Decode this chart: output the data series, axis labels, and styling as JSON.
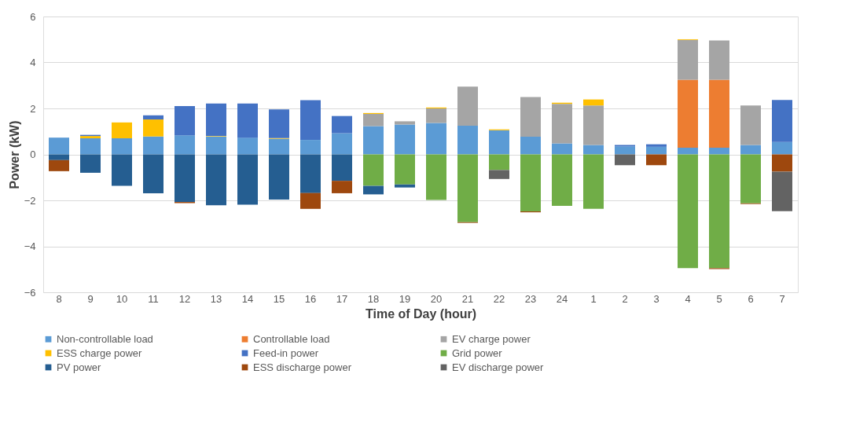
{
  "chart_data": {
    "type": "bar",
    "stacked": true,
    "xlabel": "Time of Day (hour)",
    "ylabel": "Power (kW)",
    "categories": [
      "8",
      "9",
      "10",
      "11",
      "12",
      "13",
      "14",
      "15",
      "16",
      "17",
      "18",
      "19",
      "20",
      "21",
      "22",
      "23",
      "24",
      "1",
      "2",
      "3",
      "4",
      "5",
      "6",
      "7"
    ],
    "ylim": [
      -6,
      6
    ],
    "yticks": [
      -6,
      -4,
      -2,
      0,
      2,
      4,
      6
    ],
    "grid": "y",
    "legend": "bottom",
    "series": [
      {
        "name": "Non-controllable load",
        "color": "#5b9bd5",
        "values": [
          0.73,
          0.7,
          0.7,
          0.78,
          0.83,
          0.78,
          0.73,
          0.68,
          0.63,
          0.92,
          1.23,
          1.3,
          1.37,
          1.25,
          1.05,
          0.77,
          0.48,
          0.41,
          0.35,
          0.33,
          0.29,
          0.29,
          0.41,
          0.54
        ]
      },
      {
        "name": "Controllable load",
        "color": "#ed7d31",
        "values": [
          null,
          null,
          null,
          null,
          null,
          null,
          null,
          null,
          null,
          null,
          null,
          null,
          null,
          null,
          null,
          null,
          null,
          null,
          null,
          null,
          2.96,
          2.96,
          null,
          null
        ]
      },
      {
        "name": "EV charge power",
        "color": "#a5a5a5",
        "values": [
          null,
          null,
          null,
          null,
          null,
          null,
          null,
          null,
          null,
          null,
          0.53,
          0.14,
          0.63,
          1.7,
          null,
          1.73,
          1.72,
          1.72,
          null,
          null,
          1.73,
          1.71,
          1.72,
          null
        ]
      },
      {
        "name": "ESS charge power",
        "color": "#ffc000",
        "values": [
          null,
          0.1,
          0.69,
          0.74,
          null,
          0.02,
          null,
          0.03,
          null,
          null,
          0.04,
          null,
          0.04,
          null,
          0.04,
          null,
          0.05,
          0.26,
          null,
          null,
          0.03,
          null,
          null,
          null
        ]
      },
      {
        "name": "Feed-in power",
        "color": "#4472c4",
        "values": [
          null,
          0.05,
          null,
          0.18,
          1.27,
          1.41,
          1.48,
          1.25,
          1.73,
          0.75,
          null,
          null,
          null,
          null,
          null,
          null,
          null,
          null,
          0.06,
          0.11,
          null,
          null,
          null,
          1.83
        ]
      },
      {
        "name": "Grid power",
        "color": "#70ad47",
        "values": [
          null,
          null,
          null,
          null,
          null,
          null,
          null,
          null,
          null,
          null,
          -1.37,
          -1.31,
          -1.98,
          -2.95,
          -0.68,
          -2.48,
          -2.24,
          -2.37,
          null,
          null,
          -4.95,
          -4.95,
          -2.13,
          null
        ]
      },
      {
        "name": "PV power",
        "color": "#255e91",
        "values": [
          -0.25,
          -0.8,
          -1.37,
          -1.69,
          -2.07,
          -2.21,
          -2.19,
          -1.97,
          -1.68,
          -1.15,
          -0.37,
          -0.13,
          null,
          null,
          null,
          null,
          null,
          null,
          null,
          null,
          null,
          null,
          null,
          null
        ]
      },
      {
        "name": "ESS discharge power",
        "color": "#9e480e",
        "values": [
          -0.48,
          null,
          null,
          null,
          -0.05,
          null,
          null,
          null,
          -0.69,
          -0.54,
          null,
          null,
          null,
          -0.03,
          null,
          -0.04,
          null,
          null,
          null,
          -0.47,
          null,
          -0.04,
          -0.03,
          -0.75
        ]
      },
      {
        "name": "EV discharge power",
        "color": "#636363",
        "values": [
          null,
          null,
          null,
          null,
          null,
          null,
          null,
          null,
          null,
          null,
          null,
          null,
          null,
          null,
          -0.39,
          null,
          null,
          null,
          -0.47,
          null,
          null,
          null,
          null,
          -1.72
        ]
      }
    ]
  }
}
